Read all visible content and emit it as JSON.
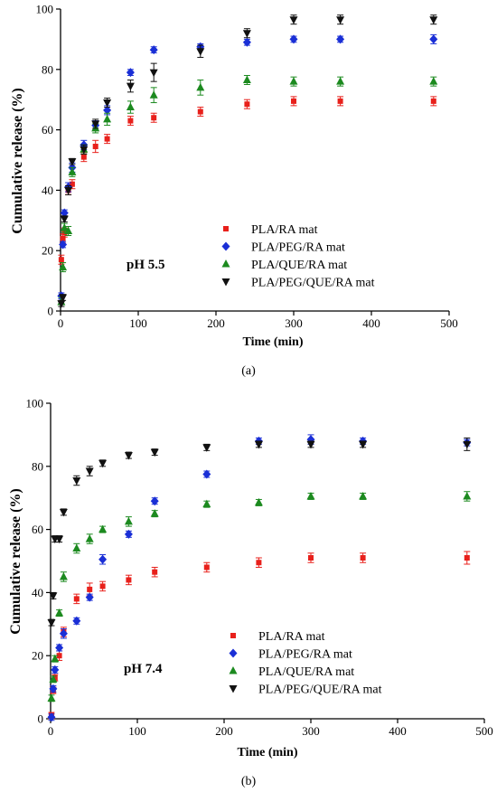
{
  "chart_data": [
    {
      "panel_label": "(a)",
      "type": "scatter",
      "annotation": "pH 5.5",
      "xlabel": "Time (min)",
      "ylabel": "Cumulative release (%)",
      "xlim": [
        0,
        500
      ],
      "ylim": [
        0,
        100
      ],
      "xticks": [
        0,
        100,
        200,
        300,
        400,
        500
      ],
      "yticks": [
        0,
        20,
        40,
        60,
        80,
        100
      ],
      "grid": false,
      "legend_position": "lower-right",
      "series": [
        {
          "name": "PLA/RA mat",
          "marker": "square",
          "color": "#e8201b",
          "x": [
            1,
            3,
            5,
            10,
            15,
            30,
            45,
            60,
            90,
            120,
            180,
            240,
            300,
            360,
            480
          ],
          "y": [
            17,
            24,
            26,
            40,
            42,
            51,
            54.5,
            57,
            63,
            64,
            66,
            68.5,
            69.5,
            69.5,
            69.5
          ],
          "err": [
            1.5,
            1.5,
            1.5,
            1.5,
            1.5,
            1.5,
            2,
            1.5,
            1.5,
            1.5,
            1.5,
            1.5,
            1.5,
            1.5,
            1.5
          ]
        },
        {
          "name": "PLA/PEG/RA mat",
          "marker": "diamond",
          "color": "#1a2fd6",
          "x": [
            1,
            3,
            5,
            10,
            15,
            30,
            45,
            60,
            90,
            120,
            180,
            240,
            300,
            360,
            480
          ],
          "y": [
            5,
            22,
            32.5,
            41,
            47.5,
            55,
            61.5,
            66.5,
            79,
            86.5,
            87.5,
            89,
            90,
            90,
            90
          ],
          "err": [
            1,
            1,
            1,
            1.5,
            1.5,
            1.5,
            1.5,
            1.5,
            1,
            1,
            1,
            1,
            1,
            1,
            1.5
          ]
        },
        {
          "name": "PLA/QUE/RA mat",
          "marker": "triangle-up",
          "color": "#1c8a1f",
          "x": [
            1,
            3,
            5,
            10,
            15,
            30,
            45,
            60,
            90,
            120,
            180,
            240,
            300,
            360,
            480
          ],
          "y": [
            3,
            14.5,
            27.5,
            26.5,
            46,
            53.5,
            60.5,
            63.5,
            67.5,
            71.5,
            74,
            76.5,
            76,
            76,
            76
          ],
          "err": [
            1.5,
            1.5,
            1.5,
            1.5,
            1.5,
            1.5,
            1.5,
            2,
            2,
            2.5,
            2.5,
            1.5,
            1.5,
            1.5,
            1.5
          ]
        },
        {
          "name": "PLA/PEG/QUE/RA mat",
          "marker": "triangle-down",
          "color": "#111111",
          "x": [
            1,
            3,
            5,
            10,
            15,
            30,
            45,
            60,
            90,
            120,
            180,
            240,
            300,
            360,
            480
          ],
          "y": [
            2.5,
            4.5,
            30.5,
            40,
            49.5,
            53.5,
            62,
            69,
            74.5,
            79,
            86,
            92,
            96.5,
            96.5,
            96.5
          ],
          "err": [
            1,
            1,
            1,
            1.5,
            1,
            1.5,
            1.5,
            1.5,
            2,
            3,
            2,
            1.5,
            1.5,
            1.5,
            1.5
          ]
        }
      ]
    },
    {
      "panel_label": "(b)",
      "type": "scatter",
      "annotation": "pH 7.4",
      "xlabel": "Time (min)",
      "ylabel": "Cumulative release (%)",
      "xlim": [
        0,
        500
      ],
      "ylim": [
        0,
        100
      ],
      "xticks": [
        0,
        100,
        200,
        300,
        400,
        500
      ],
      "yticks": [
        0,
        20,
        40,
        60,
        80,
        100
      ],
      "grid": false,
      "legend_position": "lower-right",
      "series": [
        {
          "name": "PLA/RA mat",
          "marker": "square",
          "color": "#e8201b",
          "x": [
            1,
            3,
            5,
            10,
            15,
            30,
            45,
            60,
            90,
            120,
            180,
            240,
            300,
            360,
            480
          ],
          "y": [
            1,
            9,
            13,
            20,
            27.5,
            38,
            41,
            42,
            44,
            46.5,
            48,
            49.5,
            51,
            51,
            51
          ],
          "err": [
            1,
            1,
            1,
            1.5,
            1.5,
            1.5,
            2,
            1.5,
            1.5,
            1.5,
            1.5,
            1.5,
            1.5,
            1.5,
            2
          ]
        },
        {
          "name": "PLA/PEG/RA mat",
          "marker": "diamond",
          "color": "#1a2fd6",
          "x": [
            1,
            3,
            5,
            10,
            15,
            30,
            45,
            60,
            90,
            120,
            180,
            240,
            300,
            360,
            480
          ],
          "y": [
            0.5,
            9.5,
            15.5,
            22.5,
            27,
            31,
            38.5,
            50.5,
            58.5,
            69,
            77.5,
            88,
            88.5,
            88,
            87.5
          ],
          "err": [
            1,
            1,
            1,
            1,
            1.5,
            1,
            1,
            1.5,
            1,
            1,
            1,
            1,
            1.5,
            1,
            1
          ]
        },
        {
          "name": "PLA/QUE/RA mat",
          "marker": "triangle-up",
          "color": "#1c8a1f",
          "x": [
            1,
            3,
            5,
            10,
            15,
            30,
            45,
            60,
            90,
            120,
            180,
            240,
            300,
            360,
            480
          ],
          "y": [
            6.5,
            12.5,
            19,
            33.5,
            45,
            54,
            57,
            60,
            62.5,
            65,
            68,
            68.5,
            70.5,
            70.5,
            70.5
          ],
          "err": [
            1,
            1,
            1,
            1,
            1.5,
            1.5,
            1.5,
            1,
            1.5,
            1,
            1,
            1,
            1,
            1,
            1.5
          ]
        },
        {
          "name": "PLA/PEG/QUE/RA mat",
          "marker": "triangle-down",
          "color": "#111111",
          "x": [
            1,
            3,
            5,
            10,
            15,
            30,
            45,
            60,
            90,
            120,
            180,
            240,
            300,
            360,
            480
          ],
          "y": [
            30.5,
            39,
            57,
            57,
            65.5,
            75.5,
            78.5,
            81,
            83.5,
            84.5,
            86,
            87,
            87,
            87,
            87
          ],
          "err": [
            1,
            1,
            1,
            1,
            1,
            1.5,
            1.5,
            1,
            1,
            1,
            1,
            1,
            1,
            1,
            2
          ]
        }
      ]
    }
  ]
}
